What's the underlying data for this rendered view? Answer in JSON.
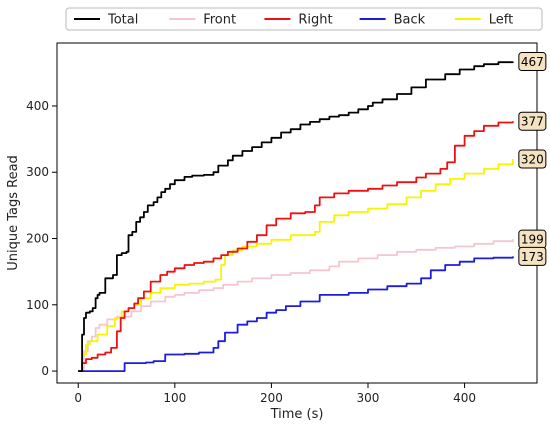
{
  "chart_data": {
    "type": "line",
    "xlabel": "Time (s)",
    "ylabel": "Unique Tags Read",
    "xlim": [
      -22,
      475
    ],
    "ylim": [
      -18,
      495
    ],
    "xticks": [
      0,
      100,
      200,
      300,
      400
    ],
    "yticks": [
      0,
      100,
      200,
      300,
      400
    ],
    "grid": false,
    "legend_position": "top",
    "series": [
      {
        "name": "Total",
        "color": "#000000",
        "x": [
          0,
          4,
          6,
          8,
          12,
          15,
          18,
          20,
          22,
          28,
          34,
          36,
          40,
          45,
          50,
          52,
          56,
          60,
          64,
          68,
          72,
          78,
          82,
          86,
          90,
          95,
          100,
          110,
          118,
          122,
          130,
          140,
          145,
          155,
          160,
          170,
          180,
          190,
          200,
          210,
          220,
          230,
          240,
          250,
          260,
          270,
          280,
          290,
          300,
          305,
          315,
          330,
          345,
          360,
          380,
          395,
          410,
          420,
          435,
          450
        ],
        "y": [
          0,
          55,
          80,
          88,
          90,
          95,
          110,
          115,
          118,
          140,
          140,
          145,
          175,
          178,
          180,
          205,
          210,
          225,
          232,
          240,
          250,
          255,
          262,
          270,
          275,
          282,
          288,
          293,
          295,
          295,
          296,
          300,
          310,
          318,
          325,
          332,
          338,
          345,
          352,
          360,
          365,
          372,
          376,
          380,
          384,
          386,
          390,
          395,
          400,
          405,
          410,
          418,
          428,
          440,
          448,
          455,
          460,
          463,
          466,
          467
        ]
      },
      {
        "name": "Front",
        "color": "#f4c6cf",
        "x": [
          0,
          6,
          10,
          14,
          18,
          22,
          30,
          40,
          55,
          65,
          75,
          90,
          100,
          110,
          125,
          140,
          150,
          165,
          180,
          200,
          220,
          240,
          260,
          270,
          290,
          310,
          330,
          350,
          370,
          390,
          410,
          430,
          450
        ],
        "y": [
          0,
          30,
          45,
          52,
          65,
          70,
          78,
          82,
          90,
          98,
          105,
          112,
          115,
          118,
          122,
          125,
          130,
          135,
          140,
          145,
          148,
          152,
          158,
          165,
          170,
          175,
          180,
          183,
          186,
          188,
          192,
          196,
          199
        ]
      },
      {
        "name": "Right",
        "color": "#ee1111",
        "x": [
          0,
          4,
          8,
          14,
          20,
          28,
          34,
          40,
          44,
          48,
          52,
          58,
          62,
          68,
          75,
          85,
          92,
          100,
          110,
          120,
          130,
          140,
          148,
          155,
          165,
          175,
          185,
          195,
          205,
          220,
          235,
          245,
          250,
          265,
          280,
          300,
          315,
          330,
          350,
          360,
          375,
          382,
          390,
          400,
          410,
          420,
          435,
          450
        ],
        "y": [
          0,
          12,
          18,
          20,
          25,
          28,
          35,
          60,
          80,
          90,
          95,
          102,
          110,
          120,
          135,
          145,
          150,
          155,
          160,
          163,
          165,
          170,
          175,
          180,
          185,
          195,
          205,
          220,
          230,
          238,
          240,
          250,
          262,
          268,
          272,
          275,
          280,
          285,
          292,
          298,
          305,
          315,
          340,
          355,
          362,
          370,
          375,
          377
        ]
      },
      {
        "name": "Back",
        "color": "#1c1ce0",
        "x": [
          0,
          40,
          48,
          55,
          70,
          78,
          90,
          110,
          125,
          140,
          145,
          152,
          165,
          175,
          185,
          195,
          205,
          215,
          230,
          250,
          265,
          280,
          300,
          320,
          340,
          355,
          365,
          380,
          395,
          410,
          430,
          450
        ],
        "y": [
          0,
          0,
          12,
          12,
          13,
          15,
          25,
          26,
          28,
          35,
          45,
          58,
          70,
          75,
          80,
          88,
          92,
          98,
          105,
          115,
          115,
          118,
          123,
          128,
          132,
          140,
          152,
          160,
          165,
          170,
          171,
          173
        ]
      },
      {
        "name": "Left",
        "color": "#f5f500",
        "x": [
          0,
          4,
          8,
          12,
          20,
          30,
          38,
          45,
          52,
          58,
          65,
          75,
          85,
          100,
          115,
          130,
          142,
          148,
          152,
          160,
          170,
          185,
          200,
          220,
          245,
          250,
          265,
          280,
          300,
          320,
          340,
          355,
          370,
          385,
          400,
          420,
          435,
          450
        ],
        "y": [
          0,
          25,
          40,
          45,
          55,
          68,
          80,
          90,
          95,
          100,
          110,
          118,
          125,
          130,
          132,
          135,
          138,
          160,
          175,
          182,
          188,
          192,
          198,
          205,
          210,
          225,
          235,
          240,
          245,
          252,
          262,
          272,
          282,
          290,
          298,
          305,
          312,
          320
        ]
      }
    ],
    "end_labels": [
      {
        "series": "Total",
        "text": "467",
        "value": 467
      },
      {
        "series": "Right",
        "text": "377",
        "value": 377
      },
      {
        "series": "Left",
        "text": "320",
        "value": 320
      },
      {
        "series": "Front",
        "text": "199",
        "value": 199
      },
      {
        "series": "Back",
        "text": "173",
        "value": 173
      }
    ]
  }
}
